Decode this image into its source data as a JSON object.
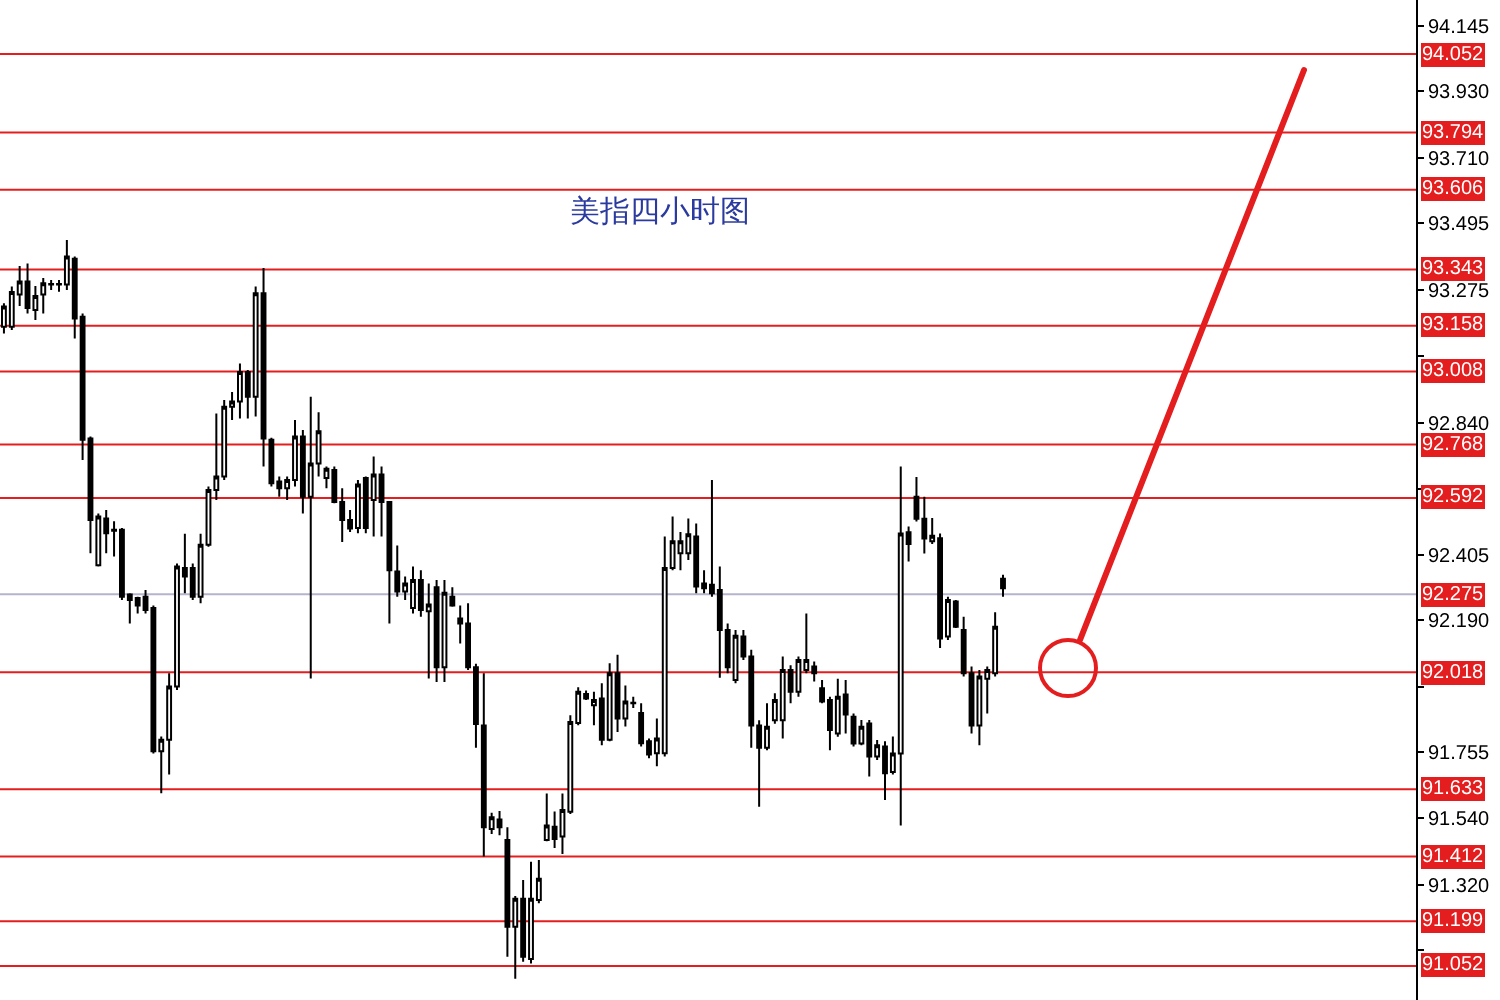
{
  "chart_data": {
    "type": "candlestick",
    "title": "美指四小时图",
    "categories": [
      null,
      null,
      null,
      null,
      null,
      null,
      null,
      null,
      null,
      null,
      null,
      null,
      null,
      null,
      null,
      null,
      null,
      null,
      null,
      null,
      null,
      null,
      null,
      null,
      null,
      null,
      null,
      null,
      null,
      null,
      null,
      null,
      null,
      null,
      null,
      null,
      null,
      null,
      null,
      null,
      null,
      null,
      null,
      null,
      null,
      null,
      null,
      null,
      null,
      null,
      null,
      null,
      null,
      null,
      null,
      null,
      null,
      null,
      null,
      null,
      null,
      null,
      null,
      null,
      null,
      null,
      null,
      null,
      null,
      null,
      null,
      null,
      null,
      null,
      null,
      null,
      null,
      null,
      null,
      null,
      null,
      null,
      null,
      null,
      null,
      null,
      null,
      null,
      null,
      null,
      null,
      null,
      null,
      null,
      null,
      null,
      null,
      null,
      null,
      null,
      null,
      null,
      null,
      null,
      null,
      null,
      null,
      null,
      null,
      null,
      null,
      null,
      null,
      null,
      null,
      null,
      null,
      null,
      null,
      null,
      null,
      null,
      null,
      null,
      null,
      null,
      null,
      null,
      null,
      null,
      null,
      null,
      null,
      null,
      null,
      null,
      null,
      null,
      null,
      null,
      null,
      null,
      null,
      null,
      null,
      null,
      null,
      null,
      null,
      null,
      null,
      null,
      null,
      null,
      null,
      null,
      null,
      null,
      null,
      null,
      null,
      null,
      null,
      null,
      null,
      null,
      null,
      null,
      null,
      null,
      null,
      null,
      null,
      null,
      null,
      null,
      null,
      null,
      null,
      null
    ],
    "ohlc": [
      [
        93.155,
        93.232,
        93.133,
        93.222
      ],
      [
        93.155,
        93.287,
        93.144,
        93.269
      ],
      [
        93.261,
        93.355,
        93.223,
        93.304
      ],
      [
        93.304,
        93.363,
        93.199,
        93.217
      ],
      [
        93.21,
        93.289,
        93.177,
        93.256
      ],
      [
        93.261,
        93.315,
        93.199,
        93.298
      ],
      [
        93.294,
        93.309,
        93.276,
        93.296
      ],
      [
        93.296,
        93.309,
        93.27,
        93.294
      ],
      [
        93.294,
        93.44,
        93.276,
        93.386
      ],
      [
        93.379,
        93.386,
        93.116,
        93.182
      ],
      [
        93.188,
        93.199,
        92.717,
        92.783
      ],
      [
        92.787,
        92.794,
        92.41,
        92.519
      ],
      [
        92.37,
        92.541,
        92.366,
        92.531
      ],
      [
        92.524,
        92.552,
        92.41,
        92.476
      ],
      [
        92.487,
        92.515,
        92.399,
        92.484
      ],
      [
        92.487,
        92.493,
        92.256,
        92.267
      ],
      [
        92.274,
        92.278,
        92.179,
        92.256
      ],
      [
        92.263,
        92.267,
        92.212,
        92.238
      ],
      [
        92.267,
        92.289,
        92.212,
        92.223
      ],
      [
        92.23,
        92.238,
        91.751,
        91.758
      ],
      [
        91.758,
        91.807,
        91.62,
        91.796
      ],
      [
        91.796,
        92.015,
        91.682,
        91.971
      ],
      [
        91.971,
        92.376,
        91.96,
        92.366
      ],
      [
        92.361,
        92.474,
        92.278,
        92.333
      ],
      [
        92.361,
        92.376,
        92.256,
        92.267
      ],
      [
        92.267,
        92.474,
        92.245,
        92.438
      ],
      [
        92.438,
        92.629,
        92.431,
        92.618
      ],
      [
        92.618,
        92.87,
        92.585,
        92.662
      ],
      [
        92.662,
        92.914,
        92.651,
        92.892
      ],
      [
        92.892,
        92.94,
        92.848,
        92.909
      ],
      [
        92.909,
        93.034,
        92.853,
        93.006
      ],
      [
        93.006,
        93.013,
        92.853,
        92.925
      ],
      [
        92.925,
        93.287,
        92.86,
        93.265
      ],
      [
        93.265,
        93.348,
        92.695,
        92.787
      ],
      [
        92.783,
        92.79,
        92.629,
        92.64
      ],
      [
        92.646,
        92.662,
        92.596,
        92.624
      ],
      [
        92.624,
        92.662,
        92.585,
        92.651
      ],
      [
        92.651,
        92.848,
        92.629,
        92.794
      ],
      [
        92.794,
        92.815,
        92.541,
        92.596
      ],
      [
        92.596,
        92.925,
        91.998,
        92.705
      ],
      [
        92.705,
        92.874,
        92.662,
        92.811
      ],
      [
        92.657,
        92.695,
        92.624,
        92.688
      ],
      [
        92.684,
        92.695,
        92.574,
        92.578
      ],
      [
        92.578,
        92.624,
        92.447,
        92.519
      ],
      [
        92.519,
        92.552,
        92.48,
        92.491
      ],
      [
        92.493,
        92.651,
        92.476,
        92.636
      ],
      [
        92.657,
        92.662,
        92.476,
        92.493
      ],
      [
        92.585,
        92.728,
        92.465,
        92.669
      ],
      [
        92.669,
        92.695,
        92.465,
        92.578
      ],
      [
        92.578,
        92.58,
        92.179,
        92.354
      ],
      [
        92.35,
        92.435,
        92.267,
        92.284
      ],
      [
        92.284,
        92.333,
        92.256,
        92.31
      ],
      [
        92.23,
        92.366,
        92.212,
        92.322
      ],
      [
        92.322,
        92.354,
        92.201,
        92.223
      ],
      [
        92.219,
        92.31,
        91.998,
        92.241
      ],
      [
        92.298,
        92.322,
        91.986,
        92.035
      ],
      [
        92.035,
        92.322,
        91.986,
        92.28
      ],
      [
        92.267,
        92.298,
        92.234,
        92.238
      ],
      [
        92.195,
        92.238,
        92.113,
        92.179
      ],
      [
        92.179,
        92.245,
        92.026,
        92.035
      ],
      [
        92.035,
        92.046,
        91.77,
        91.848
      ],
      [
        91.843,
        92.015,
        91.412,
        91.508
      ],
      [
        91.503,
        91.556,
        91.486,
        91.541
      ],
      [
        91.534,
        91.562,
        91.482,
        91.508
      ],
      [
        91.466,
        91.508,
        91.082,
        91.181
      ],
      [
        91.181,
        91.282,
        91.01,
        91.273
      ],
      [
        91.273,
        91.335,
        91.066,
        91.082
      ],
      [
        91.075,
        91.395,
        91.06,
        91.273
      ],
      [
        91.269,
        91.401,
        91.258,
        91.339
      ],
      [
        91.466,
        91.619,
        91.462,
        91.514
      ],
      [
        91.51,
        91.56,
        91.44,
        91.47
      ],
      [
        91.478,
        91.619,
        91.42,
        91.565
      ],
      [
        91.559,
        91.877,
        91.552,
        91.855
      ],
      [
        91.851,
        91.969,
        91.844,
        91.954
      ],
      [
        91.947,
        91.958,
        91.927,
        91.932
      ],
      [
        91.91,
        91.954,
        91.844,
        91.927
      ],
      [
        91.932,
        91.982,
        91.778,
        91.796
      ],
      [
        91.796,
        92.048,
        91.791,
        92.015
      ],
      [
        92.015,
        92.076,
        91.822,
        91.866
      ],
      [
        91.866,
        91.975,
        91.84,
        91.922
      ],
      [
        91.918,
        91.938,
        91.901,
        91.916
      ],
      [
        91.884,
        91.916,
        91.774,
        91.785
      ],
      [
        91.791,
        91.8,
        91.735,
        91.748
      ],
      [
        91.752,
        91.866,
        91.709,
        91.8
      ],
      [
        91.752,
        92.465,
        91.741,
        92.361
      ],
      [
        92.361,
        92.531,
        92.354,
        92.449
      ],
      [
        92.41,
        92.48,
        92.354,
        92.449
      ],
      [
        92.41,
        92.524,
        92.388,
        92.472
      ],
      [
        92.465,
        92.508,
        92.278,
        92.3
      ],
      [
        92.31,
        92.354,
        92.278,
        92.295
      ],
      [
        92.306,
        92.651,
        92.267,
        92.278
      ],
      [
        92.289,
        92.366,
        92.0,
        92.157
      ],
      [
        92.157,
        92.179,
        92.015,
        92.035
      ],
      [
        91.993,
        92.157,
        91.982,
        92.138
      ],
      [
        92.136,
        92.157,
        92.059,
        92.07
      ],
      [
        92.07,
        92.092,
        91.77,
        91.843
      ],
      [
        91.843,
        91.86,
        91.576,
        91.77
      ],
      [
        91.77,
        91.916,
        91.762,
        91.839
      ],
      [
        91.86,
        91.949,
        91.849,
        91.927
      ],
      [
        91.86,
        92.07,
        91.8,
        92.026
      ],
      [
        92.026,
        92.041,
        91.916,
        91.954
      ],
      [
        91.954,
        92.07,
        91.938,
        92.059
      ],
      [
        92.026,
        92.212,
        92.015,
        92.059
      ],
      [
        92.037,
        92.054,
        91.988,
        92.015
      ],
      [
        91.966,
        91.993,
        91.916,
        91.922
      ],
      [
        91.927,
        91.938,
        91.762,
        91.828
      ],
      [
        91.817,
        91.997,
        91.806,
        91.938
      ],
      [
        91.945,
        91.993,
        91.817,
        91.879
      ],
      [
        91.872,
        91.883,
        91.774,
        91.784
      ],
      [
        91.784,
        91.861,
        91.778,
        91.839
      ],
      [
        91.85,
        91.861,
        91.675,
        91.741
      ],
      [
        91.741,
        91.795,
        91.73,
        91.778
      ],
      [
        91.774,
        91.791,
        91.598,
        91.686
      ],
      [
        91.69,
        91.807,
        91.682,
        91.751
      ],
      [
        91.751,
        92.695,
        91.514,
        92.475
      ],
      [
        92.479,
        92.498,
        92.383,
        92.44
      ],
      [
        92.596,
        92.661,
        92.514,
        92.523
      ],
      [
        92.523,
        92.596,
        92.409,
        92.458
      ],
      [
        92.449,
        92.526,
        92.44,
        92.467
      ],
      [
        92.459,
        92.475,
        92.098,
        92.129
      ],
      [
        92.136,
        92.267,
        92.124,
        92.256
      ],
      [
        92.251,
        92.256,
        92.164,
        92.168
      ],
      [
        92.157,
        92.201,
        92.004,
        92.015
      ],
      [
        92.015,
        92.037,
        91.817,
        91.843
      ],
      [
        91.843,
        92.026,
        91.778,
        92.004
      ],
      [
        91.997,
        92.037,
        91.883,
        92.026
      ],
      [
        92.015,
        92.216,
        92.004,
        92.168
      ],
      [
        92.326,
        92.339,
        92.267,
        92.295
      ],
      null,
      null,
      null,
      null,
      null,
      null,
      null,
      null,
      null,
      null,
      null,
      null,
      null,
      null,
      null,
      null,
      null,
      null,
      null,
      null,
      null,
      null,
      null,
      null,
      null,
      null,
      null,
      null,
      null,
      null,
      null,
      null,
      null,
      null,
      null,
      null,
      null,
      null,
      null,
      null,
      null,
      null,
      null,
      null,
      null,
      null,
      null,
      null,
      null,
      null,
      null,
      null
    ],
    "ylim": [
      90.94,
      94.23
    ],
    "yticks": [
      {
        "value": 94.145,
        "label": "94.145"
      },
      {
        "value": 93.93,
        "label": "93.930"
      },
      {
        "value": 93.71,
        "label": "93.710"
      },
      {
        "value": 93.495,
        "label": "93.495"
      },
      {
        "value": 93.275,
        "label": "93.275"
      },
      {
        "value": 93.06,
        "label": null
      },
      {
        "value": 92.84,
        "label": "92.840"
      },
      {
        "value": 92.62,
        "label": null
      },
      {
        "value": 92.405,
        "label": "92.405"
      },
      {
        "value": 92.19,
        "label": "92.190"
      },
      {
        "value": 91.97,
        "label": null
      },
      {
        "value": 91.755,
        "label": "91.755"
      },
      {
        "value": 91.54,
        "label": "91.540"
      },
      {
        "value": 91.32,
        "label": "91.320"
      },
      {
        "value": 91.105,
        "label": null
      }
    ],
    "tick_labels": "y",
    "ref_lines": [
      {
        "axis": "y",
        "value": 94.052,
        "label": "94.052",
        "color": "#e41e1e"
      },
      {
        "axis": "y",
        "value": 93.794,
        "label": "93.794",
        "color": "#e41e1e"
      },
      {
        "axis": "y",
        "value": 93.606,
        "label": "93.606",
        "color": "#e41e1e"
      },
      {
        "axis": "y",
        "value": 93.343,
        "label": "93.343",
        "color": "#e41e1e"
      },
      {
        "axis": "y",
        "value": 93.158,
        "label": "93.158",
        "color": "#e41e1e"
      },
      {
        "axis": "y",
        "value": 93.008,
        "label": "93.008",
        "color": "#e41e1e"
      },
      {
        "axis": "y",
        "value": 92.768,
        "label": "92.768",
        "color": "#e41e1e"
      },
      {
        "axis": "y",
        "value": 92.592,
        "label": "92.592",
        "color": "#e41e1e"
      },
      {
        "axis": "y",
        "value": 92.275,
        "label": "92.275",
        "color": "#b4b4cc"
      },
      {
        "axis": "y",
        "value": 92.018,
        "label": "92.018",
        "color": "#e41e1e"
      },
      {
        "axis": "y",
        "value": 91.633,
        "label": "91.633",
        "color": "#e41e1e"
      },
      {
        "axis": "y",
        "value": 91.412,
        "label": "91.412",
        "color": "#e41e1e"
      },
      {
        "axis": "y",
        "value": 91.199,
        "label": "91.199",
        "color": "#e41e1e"
      },
      {
        "axis": "y",
        "value": 91.052,
        "label": "91.052",
        "color": "#e41e1e"
      }
    ]
  }
}
